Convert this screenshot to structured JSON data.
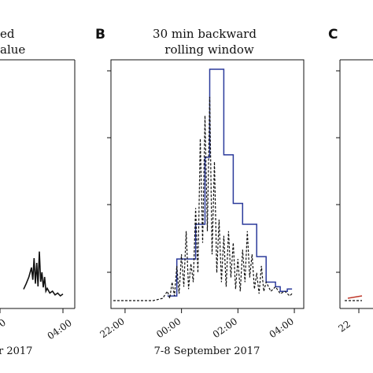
{
  "chart_data": [
    {
      "panel": "A",
      "type": "line",
      "panel_letter": "",
      "title_lines": [
        "ed",
        "alue"
      ],
      "xlabel": "r 2017",
      "x_tick_labels": [
        "00",
        "04:00"
      ],
      "series": [
        {
          "style": "solid",
          "color": "#111111",
          "x": [
            "01:30",
            "01:40",
            "01:50",
            "02:00",
            "02:05",
            "02:10",
            "02:15",
            "02:20",
            "02:25",
            "02:30",
            "02:35",
            "02:40",
            "02:45",
            "02:50",
            "02:55",
            "03:00",
            "03:10",
            "03:20",
            "03:30",
            "03:40",
            "03:50",
            "04:00"
          ],
          "y": [
            0.12,
            0.18,
            0.25,
            0.35,
            0.22,
            0.45,
            0.18,
            0.4,
            0.15,
            0.52,
            0.2,
            0.3,
            0.14,
            0.25,
            0.1,
            0.13,
            0.08,
            0.1,
            0.06,
            0.08,
            0.05,
            0.07
          ]
        }
      ]
    },
    {
      "panel": "B",
      "type": "line",
      "panel_letter": "B",
      "title_lines": [
        "30 min backward",
        "rolling window"
      ],
      "xlabel": "7-8 September 2017",
      "x_tick_labels": [
        "22:00",
        "00:00",
        "02:00",
        "04:00"
      ],
      "xlim": [
        "21:30",
        "04:20"
      ],
      "ylim": [
        0,
        1
      ],
      "series": [
        {
          "style": "solid",
          "color": "#2b3a9b",
          "x": [
            "23:30",
            "23:50",
            "23:50",
            "00:30",
            "00:30",
            "00:50",
            "00:50",
            "01:00",
            "01:00",
            "01:30",
            "01:30",
            "01:50",
            "01:50",
            "02:10",
            "02:10",
            "02:40",
            "02:40",
            "03:00",
            "03:00",
            "03:20",
            "03:20",
            "03:30",
            "03:30",
            "03:45",
            "03:45",
            "03:55"
          ],
          "y": [
            0.02,
            0.02,
            0.18,
            0.18,
            0.33,
            0.33,
            0.62,
            0.62,
            1.0,
            1.0,
            0.63,
            0.63,
            0.42,
            0.42,
            0.33,
            0.33,
            0.19,
            0.19,
            0.08,
            0.08,
            0.06,
            0.06,
            0.04,
            0.04,
            0.05,
            0.05
          ]
        },
        {
          "style": "dashed",
          "color": "#111111",
          "x": [
            "21:35",
            "23:00",
            "23:20",
            "23:30",
            "23:35",
            "23:40",
            "23:45",
            "23:50",
            "23:55",
            "00:00",
            "00:05",
            "00:10",
            "00:15",
            "00:20",
            "00:25",
            "00:30",
            "00:35",
            "00:40",
            "00:45",
            "00:50",
            "00:55",
            "01:00",
            "01:05",
            "01:10",
            "01:15",
            "01:20",
            "01:25",
            "01:30",
            "01:35",
            "01:40",
            "01:45",
            "01:50",
            "01:55",
            "02:00",
            "02:05",
            "02:10",
            "02:15",
            "02:20",
            "02:25",
            "02:30",
            "02:35",
            "02:40",
            "02:45",
            "02:50",
            "02:55",
            "03:00",
            "03:10",
            "03:20",
            "03:30",
            "03:40",
            "03:50",
            "03:55"
          ],
          "y": [
            0.0,
            0.0,
            0.01,
            0.04,
            0.01,
            0.08,
            0.02,
            0.15,
            0.03,
            0.2,
            0.06,
            0.3,
            0.05,
            0.16,
            0.08,
            0.4,
            0.12,
            0.7,
            0.25,
            0.8,
            0.3,
            0.88,
            0.2,
            0.6,
            0.12,
            0.35,
            0.08,
            0.28,
            0.06,
            0.3,
            0.1,
            0.25,
            0.05,
            0.18,
            0.04,
            0.22,
            0.08,
            0.3,
            0.1,
            0.2,
            0.05,
            0.12,
            0.03,
            0.15,
            0.04,
            0.08,
            0.04,
            0.06,
            0.03,
            0.04,
            0.02,
            0.03
          ]
        }
      ]
    },
    {
      "panel": "C",
      "type": "line",
      "panel_letter": "C",
      "title_lines": [],
      "xlabel": "",
      "x_tick_labels": [
        "22"
      ],
      "series": [
        {
          "style": "dashed",
          "color": "#111111",
          "x": [
            "21:35",
            "22:30"
          ],
          "y": [
            0.0,
            0.0
          ]
        },
        {
          "style": "solid",
          "color": "#c0392b",
          "x": [
            "21:45",
            "22:30"
          ],
          "y": [
            0.01,
            0.02
          ]
        }
      ]
    }
  ]
}
